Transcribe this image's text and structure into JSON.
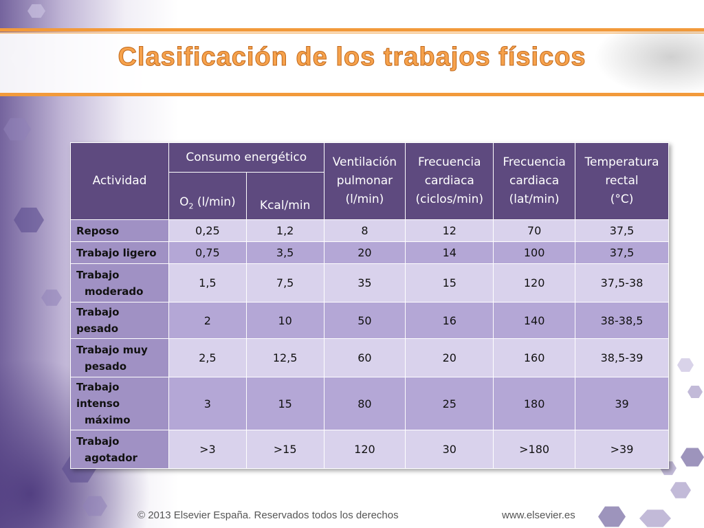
{
  "slide": {
    "title": "Clasificación de los trabajos físicos",
    "footer_left": "© 2013 Elsevier España. Reservados todos los derechos",
    "footer_right": "www.elsevier.es",
    "colors": {
      "title": "#f6a24c",
      "band": "#f29a3b",
      "header": "#5e4a7f",
      "label": "#a091c4",
      "row_light": "#d9d2ec",
      "row_dark": "#b4a7d6"
    }
  },
  "table": {
    "headers": {
      "activity": "Actividad",
      "energy_group": "Consumo energético",
      "o2_main": "O",
      "o2_sub": "2",
      "o2_rest": " (l/min)",
      "kcal": "Kcal/min",
      "vent_l1": "Ventilación",
      "vent_l2": "pulmonar",
      "vent_l3": "(l/min)",
      "fc1_l1": "Frecuencia",
      "fc1_l2": "cardiaca",
      "fc1_l3": "(ciclos/min)",
      "fc2_l1": "Frecuencia",
      "fc2_l2": "cardiaca",
      "fc2_l3": "(lat/min)",
      "temp_l1": "Temperatura",
      "temp_l2": "rectal",
      "temp_l3": "(°C)"
    },
    "rows": [
      {
        "l1": "Reposo",
        "l2": "",
        "o2": "0,25",
        "kcal": "1,2",
        "vent": "8",
        "fc1": "12",
        "fc2": "70",
        "temp": "37,5"
      },
      {
        "l1": "Trabajo ligero",
        "l2": "",
        "o2": "0,75",
        "kcal": "3,5",
        "vent": "20",
        "fc1": "14",
        "fc2": "100",
        "temp": "37,5"
      },
      {
        "l1": "Trabajo",
        "l2": "moderado",
        "o2": "1,5",
        "kcal": "7,5",
        "vent": "35",
        "fc1": "15",
        "fc2": "120",
        "temp": "37,5-38"
      },
      {
        "l1": "Trabajo pesado",
        "l2": "",
        "o2": "2",
        "kcal": "10",
        "vent": "50",
        "fc1": "16",
        "fc2": "140",
        "temp": "38-38,5"
      },
      {
        "l1": "Trabajo muy",
        "l2": "pesado",
        "o2": "2,5",
        "kcal": "12,5",
        "vent": "60",
        "fc1": "20",
        "fc2": "160",
        "temp": "38,5-39"
      },
      {
        "l1": "Trabajo intenso",
        "l2": "máximo",
        "o2": "3",
        "kcal": "15",
        "vent": "80",
        "fc1": "25",
        "fc2": "180",
        "temp": "39"
      },
      {
        "l1": "Trabajo",
        "l2": "agotador",
        "o2": ">3",
        "kcal": ">15",
        "vent": "120",
        "fc1": "30",
        "fc2": ">180",
        "temp": ">39"
      }
    ]
  }
}
